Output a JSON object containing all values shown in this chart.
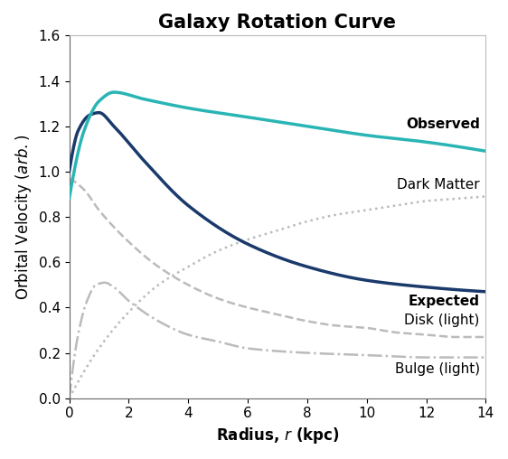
{
  "title": "Galaxy Rotation Curve",
  "xlabel": "Radius, $r$ (kpc)",
  "ylabel": "Orbital Velocity ($arb.$)",
  "xlim": [
    0,
    14
  ],
  "ylim": [
    0,
    1.6
  ],
  "xticks": [
    0,
    2,
    4,
    6,
    8,
    10,
    12,
    14
  ],
  "yticks": [
    0.0,
    0.2,
    0.4,
    0.6,
    0.8,
    1.0,
    1.2,
    1.4,
    1.6
  ],
  "observed_color": "#2ab5b5",
  "expected_color": "#1a3a6b",
  "gray_color": "#bbbbbb",
  "background_color": "#ffffff",
  "title_fontsize": 15,
  "axis_label_fontsize": 12,
  "tick_fontsize": 11,
  "annotation_fontsize": 11,
  "observed_label": "Observed",
  "expected_label": "Expected",
  "dark_matter_label": "Dark Matter",
  "disk_label": "Disk (light)",
  "bulge_label": "Bulge (light)"
}
